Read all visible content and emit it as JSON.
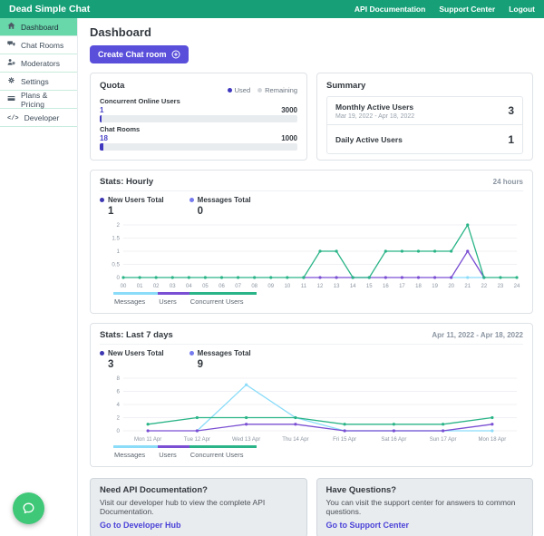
{
  "topbar": {
    "brand": "Dead Simple Chat",
    "links": [
      "API Documentation",
      "Support Center",
      "Logout"
    ]
  },
  "sidebar": {
    "items": [
      {
        "label": "Dashboard",
        "icon": "home-icon",
        "active": true
      },
      {
        "label": "Chat Rooms",
        "icon": "chat-rooms-icon",
        "active": false
      },
      {
        "label": "Moderators",
        "icon": "moderators-icon",
        "active": false
      },
      {
        "label": "Settings",
        "icon": "settings-icon",
        "active": false
      },
      {
        "label": "Plans & Pricing",
        "icon": "credit-card-icon",
        "active": false
      },
      {
        "label": "Developer",
        "icon": "code-icon",
        "active": false
      }
    ]
  },
  "page": {
    "title": "Dashboard",
    "create_button": "Create Chat room"
  },
  "quota": {
    "title": "Quota",
    "legend": {
      "used": "Used",
      "remaining": "Remaining"
    },
    "used_color": "#4038bf",
    "remaining_color": "#d3d7db",
    "bars": [
      {
        "label": "Concurrent Online Users",
        "used": 1,
        "total": 3000
      },
      {
        "label": "Chat Rooms",
        "used": 18,
        "total": 1000
      }
    ]
  },
  "summary": {
    "title": "Summary",
    "rows": [
      {
        "label": "Monthly Active Users",
        "sub": "Mar 19, 2022 - Apr 18, 2022",
        "value": "3"
      },
      {
        "label": "Daily Active Users",
        "sub": "",
        "value": "1"
      }
    ]
  },
  "stats_hourly": {
    "title": "Stats: Hourly",
    "period": "24 hours",
    "metrics": [
      {
        "label": "New Users Total",
        "value": "1",
        "color": "#3d37b1"
      },
      {
        "label": "Messages Total",
        "value": "0",
        "color": "#767bed"
      }
    ]
  },
  "stats_weekly": {
    "title": "Stats: Last 7 days",
    "period": "Apr 11, 2022 - Apr 18, 2022",
    "metrics": [
      {
        "label": "New Users Total",
        "value": "3",
        "color": "#3d37b1"
      },
      {
        "label": "Messages Total",
        "value": "9",
        "color": "#767bed"
      }
    ]
  },
  "chart_tabs": [
    {
      "label": "Messages",
      "color": "#8bdcf9"
    },
    {
      "label": "Users",
      "color": "#7a4fd3"
    },
    {
      "label": "Concurrent Users",
      "color": "#2ab487"
    }
  ],
  "chart_data": [
    {
      "type": "line",
      "title": "Stats: Hourly",
      "x": [
        "00",
        "01",
        "02",
        "03",
        "04",
        "05",
        "06",
        "07",
        "08",
        "09",
        "10",
        "11",
        "12",
        "13",
        "14",
        "15",
        "16",
        "17",
        "18",
        "19",
        "20",
        "21",
        "22",
        "23",
        "24"
      ],
      "ylim": [
        0,
        2
      ],
      "yticks": [
        0,
        0.5,
        1,
        1.5,
        2
      ],
      "grid": true,
      "legend_position": "bottom",
      "inset": 0,
      "series": [
        {
          "name": "Messages",
          "color": "#8bdcf9",
          "values": [
            null,
            null,
            null,
            null,
            null,
            null,
            null,
            null,
            null,
            null,
            null,
            null,
            null,
            null,
            null,
            null,
            null,
            null,
            null,
            null,
            0,
            0,
            0,
            null,
            null
          ]
        },
        {
          "name": "Users",
          "color": "#7a4fd3",
          "values": [
            null,
            null,
            null,
            null,
            null,
            null,
            null,
            null,
            null,
            null,
            null,
            0,
            0,
            0,
            0,
            0,
            0,
            0,
            0,
            0,
            0,
            1,
            0,
            null,
            null
          ]
        },
        {
          "name": "Concurrent Users",
          "color": "#2ab487",
          "values": [
            0,
            0,
            0,
            0,
            0,
            0,
            0,
            0,
            0,
            0,
            0,
            0,
            1,
            1,
            0,
            0,
            1,
            1,
            1,
            1,
            1,
            2,
            0,
            0,
            0
          ]
        }
      ]
    },
    {
      "type": "line",
      "title": "Stats: Last 7 days",
      "x": [
        "Mon 11 Apr",
        "Tue 12 Apr",
        "Wed 13 Apr",
        "Thu 14 Apr",
        "Fri 15 Apr",
        "Sat 16 Apr",
        "Sun 17 Apr",
        "Mon 18 Apr"
      ],
      "ylim": [
        0,
        8
      ],
      "yticks": [
        0,
        2,
        4,
        6,
        8
      ],
      "grid": true,
      "legend_position": "bottom",
      "inset": 0.5,
      "series": [
        {
          "name": "Messages",
          "color": "#8bdcf9",
          "values": [
            null,
            0,
            7,
            2,
            0,
            0,
            0,
            0
          ]
        },
        {
          "name": "Users",
          "color": "#7a4fd3",
          "values": [
            0,
            0,
            1,
            1,
            0,
            0,
            0,
            1
          ]
        },
        {
          "name": "Concurrent Users",
          "color": "#2ab487",
          "values": [
            1,
            2,
            2,
            2,
            1,
            1,
            1,
            2
          ]
        }
      ]
    }
  ],
  "info_cards": [
    {
      "title": "Need API Documentation?",
      "body": "Visit our developer hub to view the complete API Documentation.",
      "link": "Go to Developer Hub"
    },
    {
      "title": "Have Questions?",
      "body": "You can visit the support center for answers to common questions.",
      "link": "Go to Support Center"
    }
  ],
  "chat_widget": {
    "icon": "chat-bubble-icon"
  }
}
